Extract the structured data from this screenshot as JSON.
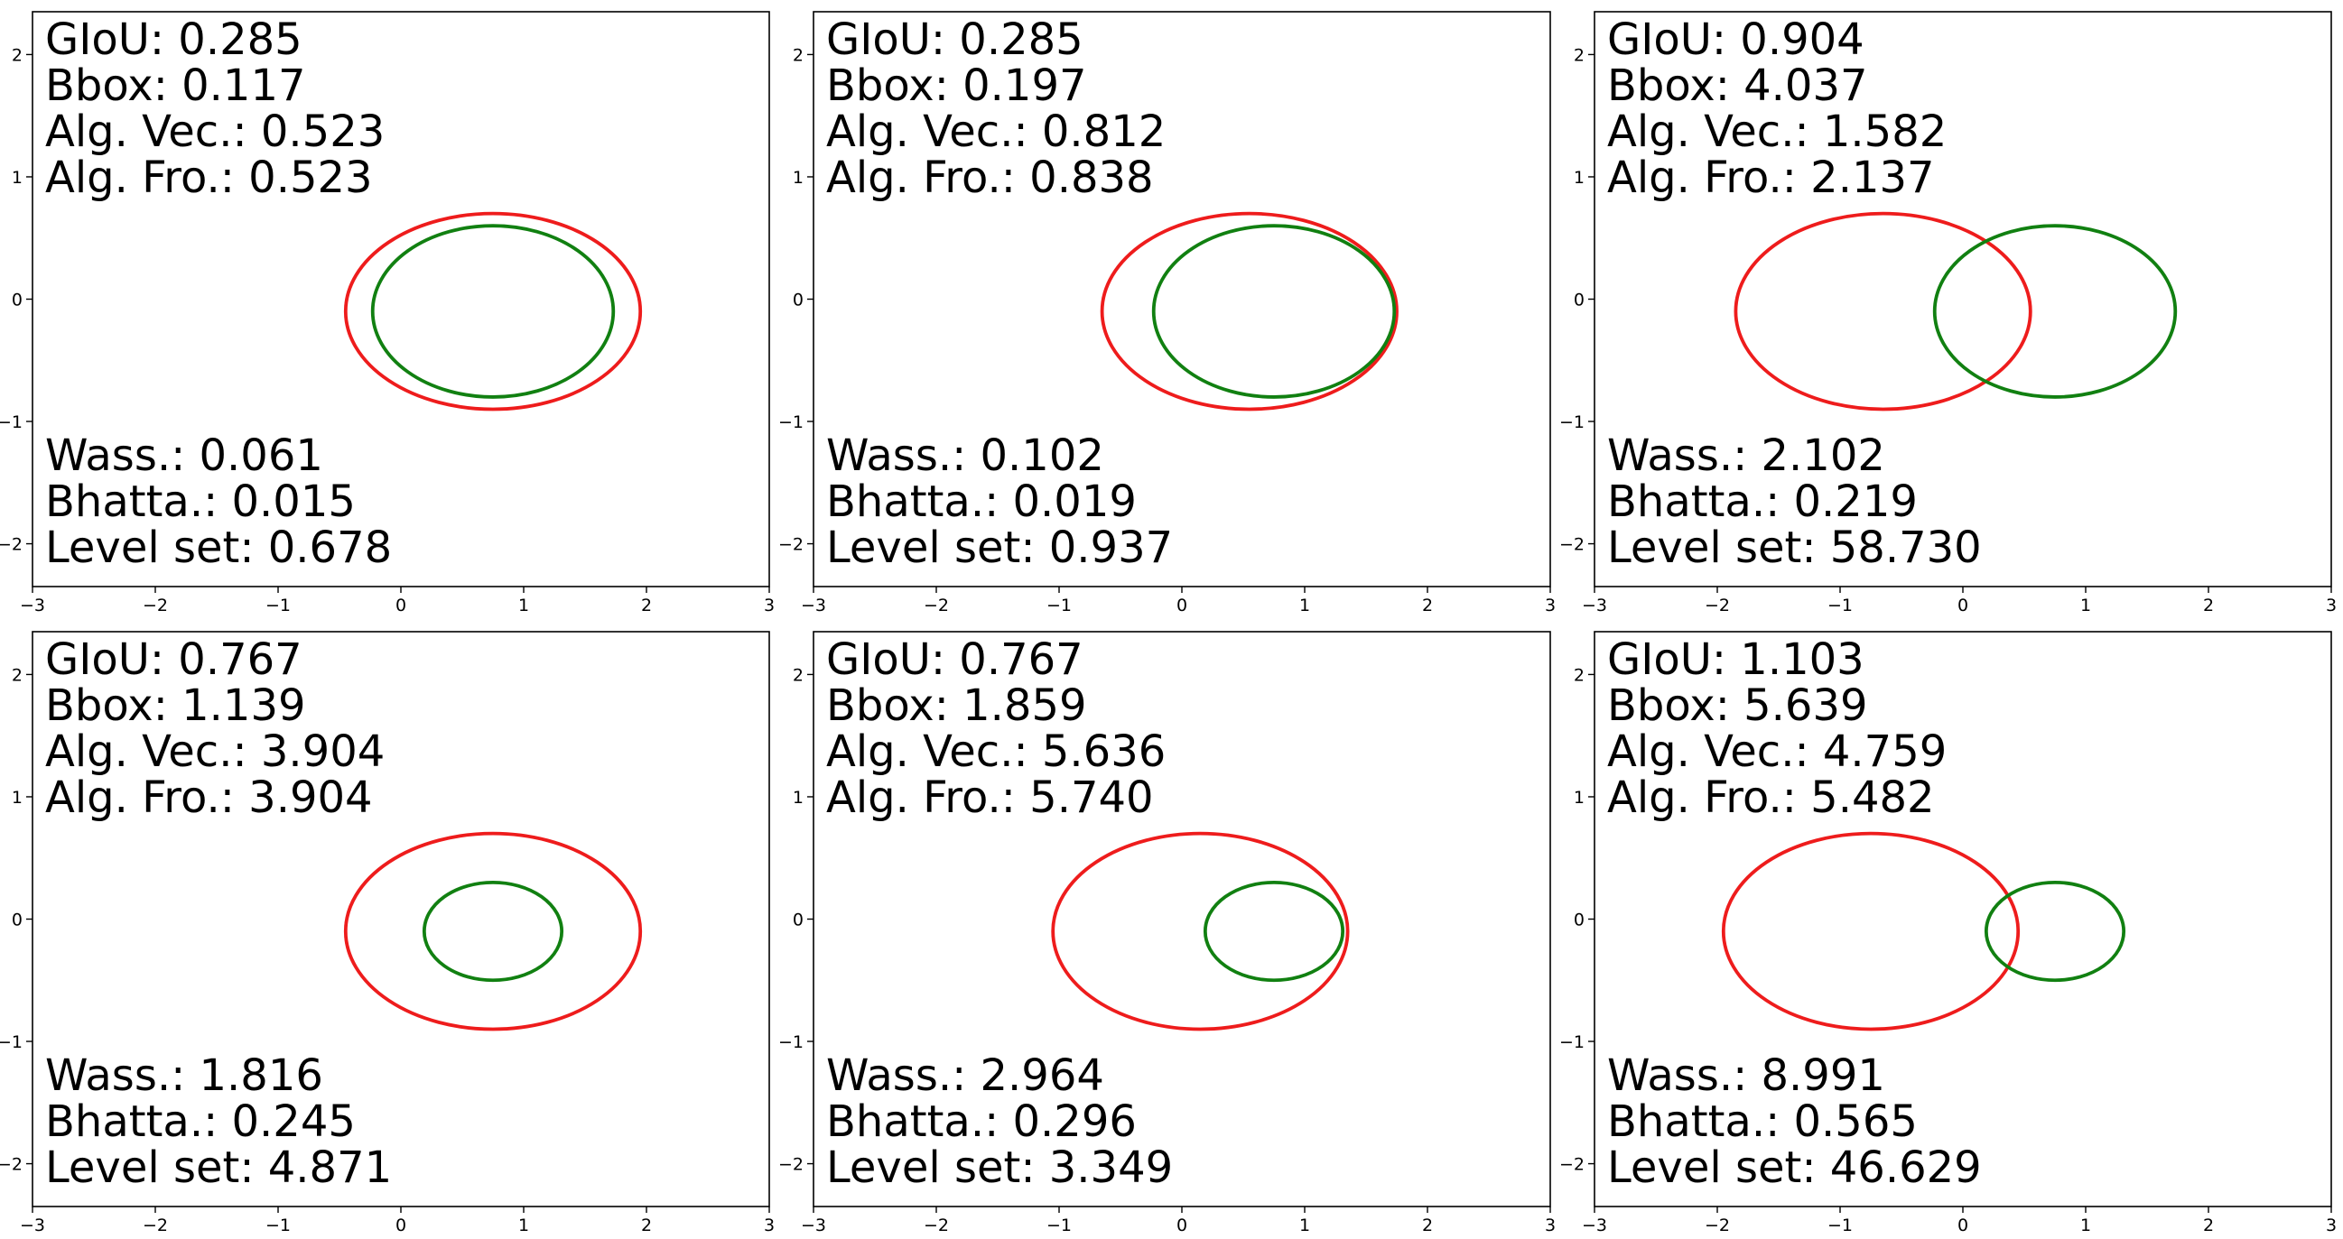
{
  "chart_data": {
    "type": "ellipse-overlay-grid",
    "layout": "2 rows x 3 columns",
    "shared_axes": {
      "xlim": [
        -3,
        3
      ],
      "ylim": [
        -2.35,
        2.35
      ],
      "xticks": [
        -3,
        -2,
        -1,
        0,
        1,
        2,
        3
      ],
      "yticks": [
        -2,
        -1,
        0,
        1,
        2
      ]
    },
    "series_colors": {
      "reference": "#ee1c1c",
      "prediction": "#118011"
    },
    "panels": [
      {
        "ellipses": [
          {
            "role": "reference",
            "cx": 0.75,
            "cy": -0.1,
            "rx": 1.2,
            "ry": 0.8
          },
          {
            "role": "prediction",
            "cx": 0.75,
            "cy": -0.1,
            "rx": 0.98,
            "ry": 0.7
          }
        ],
        "metrics_top": [
          "GIoU: 0.285",
          "Bbox: 0.117",
          "Alg. Vec.: 0.523",
          "Alg. Fro.: 0.523"
        ],
        "metrics_bottom": [
          "Wass.: 0.061",
          "Bhatta.: 0.015",
          "Level set: 0.678"
        ]
      },
      {
        "ellipses": [
          {
            "role": "reference",
            "cx": 0.55,
            "cy": -0.1,
            "rx": 1.2,
            "ry": 0.8
          },
          {
            "role": "prediction",
            "cx": 0.75,
            "cy": -0.1,
            "rx": 0.98,
            "ry": 0.7
          }
        ],
        "metrics_top": [
          "GIoU: 0.285",
          "Bbox: 0.197",
          "Alg. Vec.: 0.812",
          "Alg. Fro.: 0.838"
        ],
        "metrics_bottom": [
          "Wass.: 0.102",
          "Bhatta.: 0.019",
          "Level set: 0.937"
        ]
      },
      {
        "ellipses": [
          {
            "role": "reference",
            "cx": -0.65,
            "cy": -0.1,
            "rx": 1.2,
            "ry": 0.8
          },
          {
            "role": "prediction",
            "cx": 0.75,
            "cy": -0.1,
            "rx": 0.98,
            "ry": 0.7
          }
        ],
        "metrics_top": [
          "GIoU: 0.904",
          "Bbox: 4.037",
          "Alg. Vec.: 1.582",
          "Alg. Fro.: 2.137"
        ],
        "metrics_bottom": [
          "Wass.: 2.102",
          "Bhatta.: 0.219",
          "Level set: 58.730"
        ]
      },
      {
        "ellipses": [
          {
            "role": "reference",
            "cx": 0.75,
            "cy": -0.1,
            "rx": 1.2,
            "ry": 0.8
          },
          {
            "role": "prediction",
            "cx": 0.75,
            "cy": -0.1,
            "rx": 0.56,
            "ry": 0.4
          }
        ],
        "metrics_top": [
          "GIoU: 0.767",
          "Bbox: 1.139",
          "Alg. Vec.: 3.904",
          "Alg. Fro.: 3.904"
        ],
        "metrics_bottom": [
          "Wass.: 1.816",
          "Bhatta.: 0.245",
          "Level set: 4.871"
        ]
      },
      {
        "ellipses": [
          {
            "role": "reference",
            "cx": 0.15,
            "cy": -0.1,
            "rx": 1.2,
            "ry": 0.8
          },
          {
            "role": "prediction",
            "cx": 0.75,
            "cy": -0.1,
            "rx": 0.56,
            "ry": 0.4
          }
        ],
        "metrics_top": [
          "GIoU: 0.767",
          "Bbox: 1.859",
          "Alg. Vec.: 5.636",
          "Alg. Fro.: 5.740"
        ],
        "metrics_bottom": [
          "Wass.: 2.964",
          "Bhatta.: 0.296",
          "Level set: 3.349"
        ]
      },
      {
        "ellipses": [
          {
            "role": "reference",
            "cx": -0.75,
            "cy": -0.1,
            "rx": 1.2,
            "ry": 0.8
          },
          {
            "role": "prediction",
            "cx": 0.75,
            "cy": -0.1,
            "rx": 0.56,
            "ry": 0.4
          }
        ],
        "metrics_top": [
          "GIoU: 1.103",
          "Bbox: 5.639",
          "Alg. Vec.: 4.759",
          "Alg. Fro.: 5.482"
        ],
        "metrics_bottom": [
          "Wass.: 8.991",
          "Bhatta.: 0.565",
          "Level set: 46.629"
        ]
      }
    ]
  }
}
